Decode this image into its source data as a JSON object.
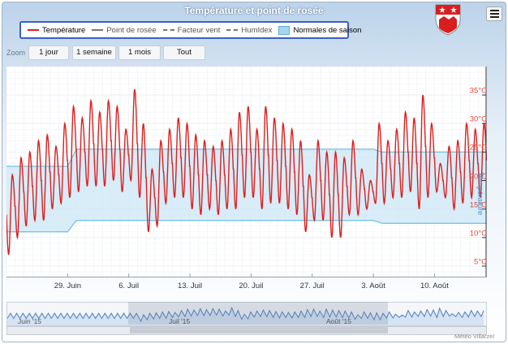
{
  "header": {
    "title": "Température et point de rosée",
    "menu_icon": "hamburger-menu-icon",
    "crest_icon": "coat-of-arms-icon"
  },
  "legend": {
    "items": [
      {
        "label": "Température",
        "color": "#e01e1e",
        "style": "solid"
      },
      {
        "label": "Point de rosée",
        "color": "#777777",
        "style": "solid"
      },
      {
        "label": "Facteur vent",
        "color": "#777777",
        "style": "dash"
      },
      {
        "label": "HumIdex",
        "color": "#777777",
        "style": "dash"
      },
      {
        "label": "Normales de saison",
        "color": "#a5d6f0",
        "style": "box"
      }
    ]
  },
  "zoom": {
    "label": "Zoom",
    "buttons": [
      "1 jour",
      "1 semaine",
      "1 mois",
      "Tout"
    ]
  },
  "navigator": {
    "labels": [
      "Juin '15",
      "Juil '15",
      "Août '15"
    ]
  },
  "credit": "Météo Villarzel",
  "chart_data": {
    "type": "line",
    "title": "Température et point de rosée",
    "ylabel": "Température",
    "y_unit": "°C",
    "ylim": [
      3,
      40
    ],
    "y_ticks": [
      "5°C",
      "10°C",
      "15°C",
      "20°C",
      "25°C",
      "30°C",
      "35°C"
    ],
    "x_tick_labels": [
      "29. Juin",
      "6. Juil",
      "13. Juil",
      "20. Juil",
      "27. Juil",
      "3. Août",
      "10. Août"
    ],
    "x_start": "2015-06-22",
    "x_end": "2015-08-15",
    "grid": true,
    "series": [
      {
        "name": "Température",
        "color": "#e01e1e",
        "dates": [
          "2015-06-22",
          "2015-06-23",
          "2015-06-24",
          "2015-06-25",
          "2015-06-26",
          "2015-06-27",
          "2015-06-28",
          "2015-06-29",
          "2015-06-30",
          "2015-07-01",
          "2015-07-02",
          "2015-07-03",
          "2015-07-04",
          "2015-07-05",
          "2015-07-06",
          "2015-07-07",
          "2015-07-08",
          "2015-07-09",
          "2015-07-10",
          "2015-07-11",
          "2015-07-12",
          "2015-07-13",
          "2015-07-14",
          "2015-07-15",
          "2015-07-16",
          "2015-07-17",
          "2015-07-18",
          "2015-07-19",
          "2015-07-20",
          "2015-07-21",
          "2015-07-22",
          "2015-07-23",
          "2015-07-24",
          "2015-07-25",
          "2015-07-26",
          "2015-07-27",
          "2015-07-28",
          "2015-07-29",
          "2015-07-30",
          "2015-07-31",
          "2015-08-01",
          "2015-08-02",
          "2015-08-03",
          "2015-08-04",
          "2015-08-05",
          "2015-08-06",
          "2015-08-07",
          "2015-08-08",
          "2015-08-09",
          "2015-08-10",
          "2015-08-11",
          "2015-08-12",
          "2015-08-13",
          "2015-08-14",
          "2015-08-15"
        ],
        "daily_min": [
          7,
          10,
          12,
          13,
          13,
          15,
          16,
          17,
          18,
          19,
          19,
          19,
          20,
          18,
          20,
          17,
          11,
          12,
          16,
          17,
          17,
          15,
          14,
          15,
          14,
          15,
          15,
          17,
          17,
          15,
          16,
          16,
          15,
          14,
          11,
          13,
          13,
          10,
          10,
          14,
          14,
          15,
          16,
          16,
          17,
          17,
          18,
          15,
          17,
          18,
          17,
          15,
          16,
          17,
          17
        ],
        "daily_max": [
          21,
          24,
          25,
          27,
          28,
          26,
          30,
          33,
          31,
          34,
          32,
          34,
          33,
          29,
          36,
          30,
          22,
          27,
          29,
          31,
          30,
          28,
          27,
          26,
          27,
          29,
          32,
          33,
          29,
          33,
          31,
          30,
          29,
          27,
          21,
          27,
          25,
          25,
          24,
          27,
          22,
          20,
          30,
          27,
          29,
          32,
          31,
          35,
          30,
          23,
          26,
          27,
          30,
          29,
          30
        ]
      },
      {
        "name": "Normales de saison",
        "color": "#a5d6f0",
        "dates": [
          "2015-06-22",
          "2015-06-29",
          "2015-06-30",
          "2015-08-03",
          "2015-08-04",
          "2015-08-15"
        ],
        "upper": [
          22.5,
          22.5,
          25.5,
          25.5,
          25,
          25
        ],
        "lower": [
          11,
          11,
          13,
          13,
          12.5,
          12.5
        ]
      }
    ]
  }
}
